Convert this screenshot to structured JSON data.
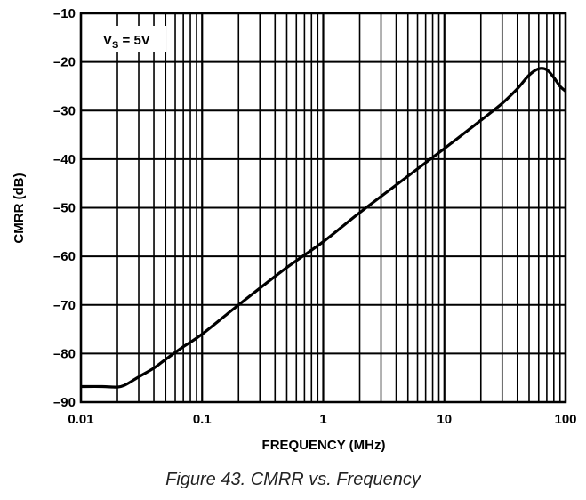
{
  "caption": "Figure 43. CMRR vs. Frequency",
  "annotation": {
    "main": "V",
    "sub": "S",
    "rest": " = 5V"
  },
  "chart_data": {
    "type": "line",
    "title": "",
    "xlabel": "FREQUENCY (MHz)",
    "ylabel": "CMRR (dB)",
    "xscale": "log",
    "xlim": [
      0.01,
      100
    ],
    "ylim": [
      -90,
      -10
    ],
    "xticks": [
      0.01,
      0.1,
      1,
      10,
      100
    ],
    "xtick_labels": [
      "0.01",
      "0.1",
      "1",
      "10",
      "100"
    ],
    "yticks": [
      -10,
      -20,
      -30,
      -40,
      -50,
      -60,
      -70,
      -80,
      -90
    ],
    "ytick_labels": [
      "–10",
      "–20",
      "–30",
      "–40",
      "–50",
      "–60",
      "–70",
      "–80",
      "–90"
    ],
    "grid": true,
    "series": [
      {
        "name": "",
        "x": [
          0.01,
          0.015,
          0.02,
          0.023,
          0.027,
          0.03,
          0.04,
          0.05,
          0.07,
          0.1,
          0.2,
          0.5,
          1,
          2,
          5,
          10,
          20,
          30,
          40,
          50,
          60,
          70,
          80,
          90,
          100
        ],
        "y": [
          -86.8,
          -86.8,
          -86.9,
          -86.5,
          -85.5,
          -84.8,
          -83.0,
          -81.2,
          -78.6,
          -76.0,
          -70.0,
          -62.3,
          -57.0,
          -51.0,
          -43.5,
          -37.8,
          -32.0,
          -28.5,
          -25.5,
          -22.7,
          -21.4,
          -21.6,
          -23.2,
          -25.0,
          -26.0
        ]
      }
    ],
    "line_color": "#000000"
  }
}
